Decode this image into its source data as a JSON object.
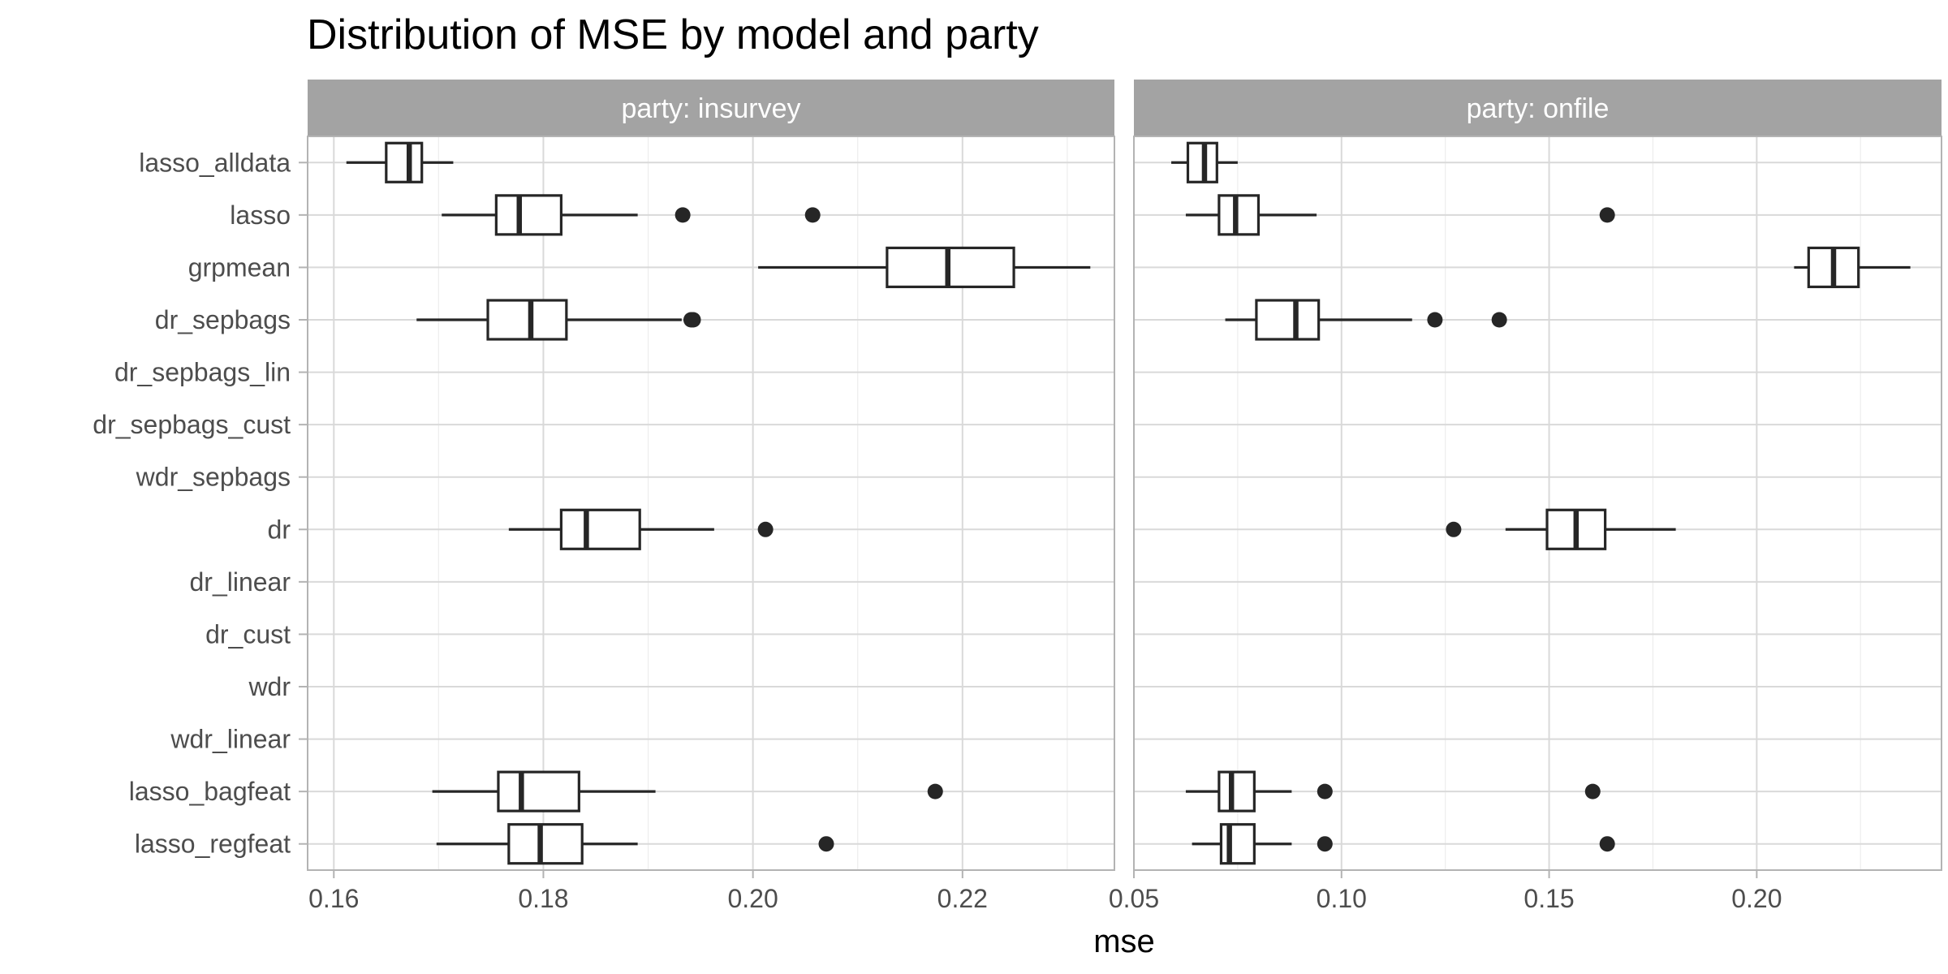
{
  "chart_data": {
    "type": "boxplot",
    "title": "Distribution of MSE by model and party",
    "xlabel": "mse",
    "ylabel": "",
    "grid": true,
    "categories": [
      "lasso_alldata",
      "lasso",
      "grpmean",
      "dr_sepbags",
      "dr_sepbags_lin",
      "dr_sepbags_cust",
      "wdr_sepbags",
      "dr",
      "dr_linear",
      "dr_cust",
      "wdr",
      "wdr_linear",
      "lasso_bagfeat",
      "lasso_regfeat"
    ],
    "facets": [
      {
        "label": "party: insurvey",
        "xlim": [
          0.1575,
          0.2345
        ],
        "ticks": [
          0.16,
          0.18,
          0.2,
          0.22
        ],
        "tick_labels": [
          "0.16",
          "0.18",
          "0.20",
          "0.22"
        ],
        "boxes": [
          {
            "category": "lasso_alldata",
            "whisker_low": 0.1612,
            "q1": 0.165,
            "median": 0.1672,
            "q3": 0.1684,
            "whisker_high": 0.1714,
            "outliers": []
          },
          {
            "category": "lasso",
            "whisker_low": 0.1703,
            "q1": 0.1755,
            "median": 0.1777,
            "q3": 0.1817,
            "whisker_high": 0.189,
            "outliers": [
              0.1933,
              0.2057
            ]
          },
          {
            "category": "grpmean",
            "whisker_low": 0.2005,
            "q1": 0.2128,
            "median": 0.2186,
            "q3": 0.2249,
            "whisker_high": 0.2322,
            "outliers": []
          },
          {
            "category": "dr_sepbags",
            "whisker_low": 0.1679,
            "q1": 0.1747,
            "median": 0.1788,
            "q3": 0.1822,
            "whisker_high": 0.1932,
            "outliers": [
              0.1941,
              0.1943
            ]
          },
          {
            "category": "dr",
            "whisker_low": 0.1767,
            "q1": 0.1817,
            "median": 0.1841,
            "q3": 0.1892,
            "whisker_high": 0.1963,
            "outliers": [
              0.2012
            ]
          },
          {
            "category": "lasso_bagfeat",
            "whisker_low": 0.1694,
            "q1": 0.1757,
            "median": 0.1779,
            "q3": 0.1834,
            "whisker_high": 0.1907,
            "outliers": [
              0.2174
            ]
          },
          {
            "category": "lasso_regfeat",
            "whisker_low": 0.1698,
            "q1": 0.1767,
            "median": 0.1797,
            "q3": 0.1837,
            "whisker_high": 0.189,
            "outliers": [
              0.207
            ]
          }
        ]
      },
      {
        "label": "party: onfile",
        "xlim": [
          0.05,
          0.2445
        ],
        "ticks": [
          0.05,
          0.1,
          0.15,
          0.2
        ],
        "tick_labels": [
          "0.05",
          "0.10",
          "0.15",
          "0.20"
        ],
        "boxes": [
          {
            "category": "lasso_alldata",
            "whisker_low": 0.059,
            "q1": 0.063,
            "median": 0.067,
            "q3": 0.07,
            "whisker_high": 0.075,
            "outliers": []
          },
          {
            "category": "lasso",
            "whisker_low": 0.0625,
            "q1": 0.0705,
            "median": 0.0745,
            "q3": 0.08,
            "whisker_high": 0.094,
            "outliers": [
              0.164
            ]
          },
          {
            "category": "grpmean",
            "whisker_low": 0.209,
            "q1": 0.2125,
            "median": 0.2185,
            "q3": 0.2245,
            "whisker_high": 0.237,
            "outliers": []
          },
          {
            "category": "dr_sepbags",
            "whisker_low": 0.072,
            "q1": 0.0795,
            "median": 0.089,
            "q3": 0.0945,
            "whisker_high": 0.117,
            "outliers": [
              0.1225,
              0.138
            ]
          },
          {
            "category": "dr",
            "whisker_low": 0.1395,
            "q1": 0.1495,
            "median": 0.1565,
            "q3": 0.1635,
            "whisker_high": 0.1805,
            "outliers": [
              0.127
            ]
          },
          {
            "category": "lasso_bagfeat",
            "whisker_low": 0.0625,
            "q1": 0.0705,
            "median": 0.0735,
            "q3": 0.079,
            "whisker_high": 0.088,
            "outliers": [
              0.096,
              0.1605
            ]
          },
          {
            "category": "lasso_regfeat",
            "whisker_low": 0.064,
            "q1": 0.071,
            "median": 0.073,
            "q3": 0.079,
            "whisker_high": 0.088,
            "outliers": [
              0.096,
              0.164
            ]
          }
        ]
      }
    ]
  }
}
